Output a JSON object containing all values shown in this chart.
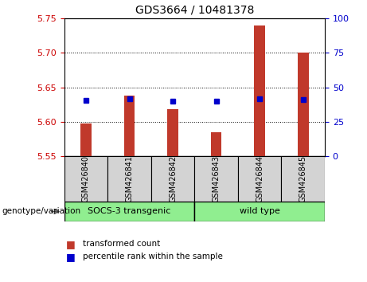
{
  "title": "GDS3664 / 10481378",
  "samples": [
    "GSM426840",
    "GSM426841",
    "GSM426842",
    "GSM426843",
    "GSM426844",
    "GSM426845"
  ],
  "transformed_counts": [
    5.598,
    5.638,
    5.618,
    5.585,
    5.74,
    5.7
  ],
  "percentile_ranks": [
    40.5,
    41.5,
    40.0,
    40.0,
    41.5,
    41.0
  ],
  "baseline": 5.55,
  "ylim_left": [
    5.55,
    5.75
  ],
  "ylim_right": [
    0,
    100
  ],
  "yticks_left": [
    5.55,
    5.6,
    5.65,
    5.7,
    5.75
  ],
  "yticks_right": [
    0,
    25,
    50,
    75,
    100
  ],
  "bar_color": "#c0392b",
  "dot_color": "#0000cc",
  "group1_label": "SOCS-3 transgenic",
  "group2_label": "wild type",
  "group1_color": "#90EE90",
  "group2_color": "#90EE90",
  "group_label_left": "genotype/variation",
  "legend_bar": "transformed count",
  "legend_dot": "percentile rank within the sample",
  "sample_bg_color": "#d3d3d3",
  "plot_bg": "#ffffff",
  "grid_color": "#000000",
  "left_label_color": "#cc0000",
  "right_label_color": "#0000cc",
  "bar_width": 0.25
}
